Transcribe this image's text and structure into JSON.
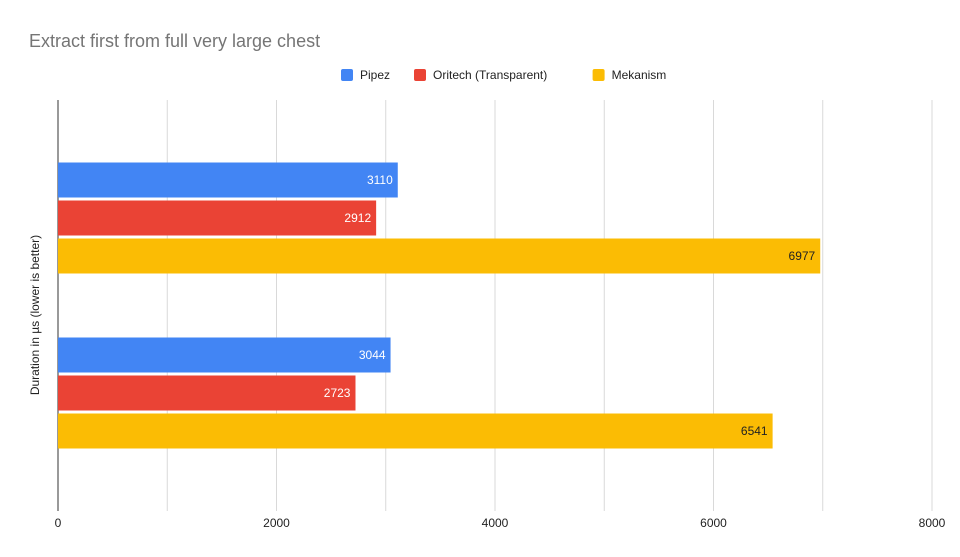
{
  "chart_data": {
    "type": "bar",
    "orientation": "horizontal",
    "title": "Extract first from full very large chest",
    "xlabel": "",
    "ylabel": "Duration in  µs (lower is better)",
    "xlim": [
      0,
      8000
    ],
    "x_ticks": [
      0,
      2000,
      4000,
      6000,
      8000
    ],
    "x_tick_labels": [
      "0",
      "2000",
      "4000",
      "6000",
      "8000"
    ],
    "grid": true,
    "legend_position": "top",
    "groups": 2,
    "series": [
      {
        "name": "Pipez",
        "color": "#4285F4",
        "label_color": "#ffffff",
        "values": [
          3110,
          3044
        ]
      },
      {
        "name": "Oritech (Transparent)",
        "color": "#EA4335",
        "label_color": "#ffffff",
        "values": [
          2912,
          2723
        ]
      },
      {
        "name": "Mekanism",
        "color": "#FBBC04",
        "label_color": "#222222",
        "values": [
          6977,
          6541
        ]
      }
    ]
  }
}
